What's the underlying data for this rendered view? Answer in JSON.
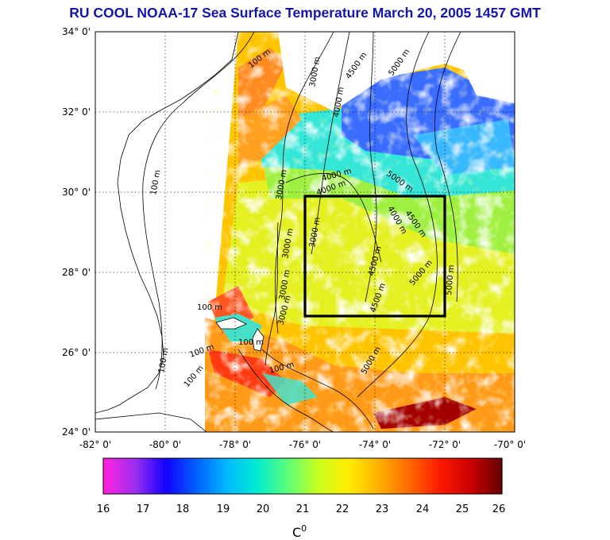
{
  "title": "RU COOL  NOAA-17 Sea Surface Temperature March 20, 2005 1457 GMT",
  "map": {
    "lat_labels": [
      "34° 0'",
      "32° 0'",
      "30° 0'",
      "28° 0'",
      "26° 0'",
      "24° 0'"
    ],
    "lon_labels": [
      "-82° 0'",
      "-80° 0'",
      "-78° 0'",
      "-76° 0'",
      "-74° 0'",
      "-72° 0'",
      "-70° 0'"
    ],
    "lat_range": [
      24,
      34
    ],
    "lon_range": [
      -82,
      -70
    ],
    "study_box": {
      "lon": [
        -76,
        -72
      ],
      "lat": [
        27,
        30
      ]
    },
    "contour_labels": [
      "100 m",
      "100 m",
      "100 m",
      "100 m",
      "100 m",
      "100 m",
      "100 m",
      "100 m",
      "3000 m",
      "3000 m",
      "3000 m",
      "3000 m",
      "3000 m",
      "3000 m",
      "4000 m",
      "4000 m",
      "4000 m",
      "4000 m",
      "4500 m",
      "4500 m",
      "4500 m",
      "4500 m",
      "5000 m",
      "5000 m",
      "5000 m",
      "5000 m",
      "5000 m"
    ]
  },
  "colorbar": {
    "ticks": [
      "16",
      "17",
      "18",
      "19",
      "20",
      "21",
      "22",
      "23",
      "24",
      "25",
      "26"
    ],
    "range": [
      16,
      26
    ],
    "unit_label": "C",
    "unit_sup": "0",
    "colors": [
      "#ff22dd",
      "#9a2ff0",
      "#1400ff",
      "#0060ff",
      "#00b8ff",
      "#00ecd2",
      "#5aff7a",
      "#c8ff20",
      "#ffee00",
      "#ffb000",
      "#ff6a00",
      "#ff1a00",
      "#cc0000",
      "#6a0000"
    ]
  }
}
